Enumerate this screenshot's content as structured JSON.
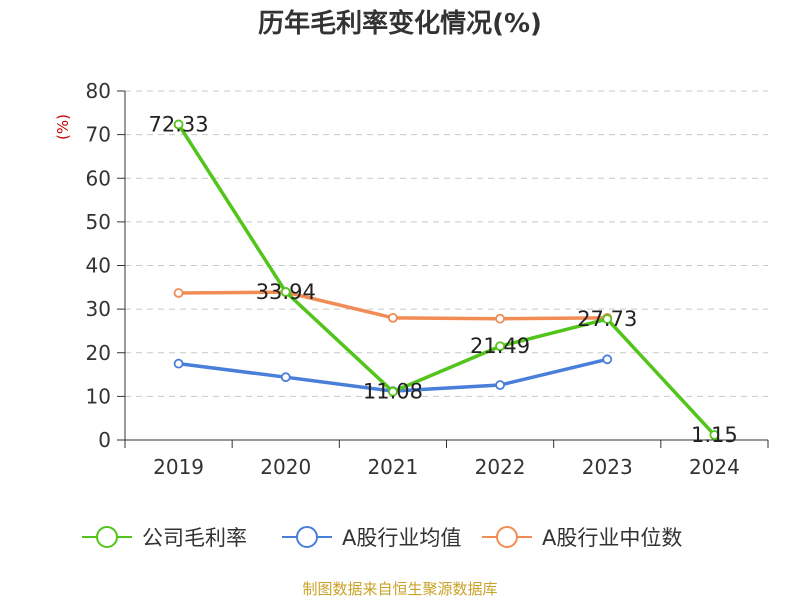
{
  "chart_data": {
    "type": "line",
    "title": "历年毛利率变化情况(%)",
    "ylabel": "(%)",
    "xlabel": "",
    "categories": [
      "2019",
      "2020",
      "2021",
      "2022",
      "2023",
      "2024"
    ],
    "ylim": [
      0,
      80
    ],
    "yticks": [
      0,
      10,
      20,
      30,
      40,
      50,
      60,
      70,
      80
    ],
    "grid": true,
    "legend_position": "bottom",
    "series": [
      {
        "name": "公司毛利率",
        "color": "#52c41a",
        "values": [
          72.33,
          33.94,
          11.08,
          21.49,
          27.73,
          1.15
        ],
        "labels": [
          "72.33",
          "33.94",
          "11.08",
          "21.49",
          "27.73",
          "1.15"
        ]
      },
      {
        "name": "A股行业均值",
        "color": "#4a7fd9",
        "values": [
          17.5,
          14.4,
          11.2,
          12.6,
          18.5,
          null
        ],
        "labels": []
      },
      {
        "name": "A股行业中位数",
        "color": "#f28c55",
        "values": [
          33.7,
          33.9,
          28.0,
          27.8,
          28.0,
          null
        ],
        "labels": []
      }
    ]
  },
  "source_text": "制图数据来自恒生聚源数据库",
  "colors": {
    "axis": "#333333",
    "grid": "#c8c8c8",
    "unit_label": "#cc0000",
    "source": "#c9a227"
  }
}
